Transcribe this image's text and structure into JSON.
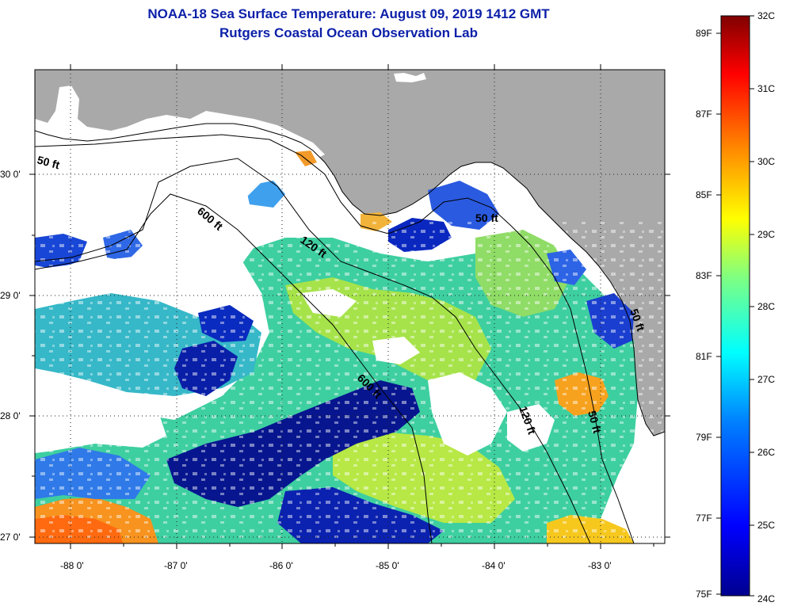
{
  "header": {
    "title": "NOAA-18 Sea Surface Temperature:  August 09, 2019 1412 GMT",
    "subtitle": "Rutgers Coastal Ocean Observation Lab"
  },
  "map": {
    "lon_ticks": [
      "-88 0'",
      "-87 0'",
      "-86 0'",
      "-85 0'",
      "-84 0'",
      "-83 0'"
    ],
    "lat_ticks": [
      "30 0'",
      "29 0'",
      "28 0'",
      "27 0'"
    ],
    "contours": [
      "50 ft",
      "600 ft",
      "120 ft",
      "50 ft",
      "600 ft",
      "120 ft",
      "50 ft",
      "50 ft"
    ],
    "colors": {
      "land": "#a9a9a9",
      "cloud": "#ffffff",
      "frame": "#000000"
    }
  },
  "colorbar": {
    "celsius": [
      "32C",
      "31C",
      "30C",
      "29C",
      "28C",
      "27C",
      "26C",
      "25C",
      "24C"
    ],
    "fahrenheit": [
      "89F",
      "87F",
      "85F",
      "83F",
      "81F",
      "79F",
      "77F",
      "75F"
    ],
    "colors": [
      "#00008f",
      "#0000ff",
      "#0080ff",
      "#00ffff",
      "#80ff80",
      "#ffff00",
      "#ff8000",
      "#ff0000",
      "#800000"
    ]
  }
}
